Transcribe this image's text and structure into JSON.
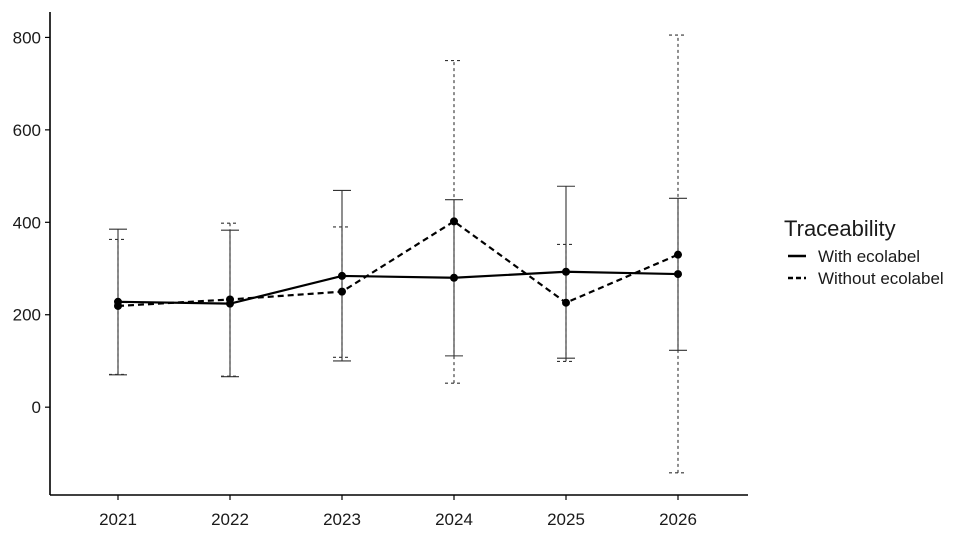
{
  "chart_data": {
    "type": "line",
    "title": "",
    "xlabel": "",
    "ylabel": "",
    "x": [
      "2021",
      "2022",
      "2023",
      "2024",
      "2025",
      "2026"
    ],
    "ylim": [
      -190,
      855
    ],
    "y_ticks": [
      0,
      200,
      400,
      600,
      800
    ],
    "grid": false,
    "legend": {
      "title": "Traceability",
      "position": "right"
    },
    "series": [
      {
        "name": "With ecolabel",
        "line_style": "solid",
        "values": [
          228,
          224,
          284,
          280,
          293,
          288
        ],
        "error_low": [
          70,
          66,
          100,
          111,
          106,
          123
        ],
        "error_high": [
          385,
          383,
          469,
          449,
          478,
          452
        ]
      },
      {
        "name": "Without ecolabel",
        "line_style": "dashed",
        "values": [
          219,
          233,
          250,
          402,
          226,
          330
        ],
        "error_low": [
          71,
          67,
          108,
          52,
          99,
          -142
        ],
        "error_high": [
          363,
          398,
          390,
          750,
          352,
          805
        ]
      }
    ],
    "colors": {
      "line": "#000000",
      "axis": "#000000",
      "errorbar": "#333333"
    }
  }
}
